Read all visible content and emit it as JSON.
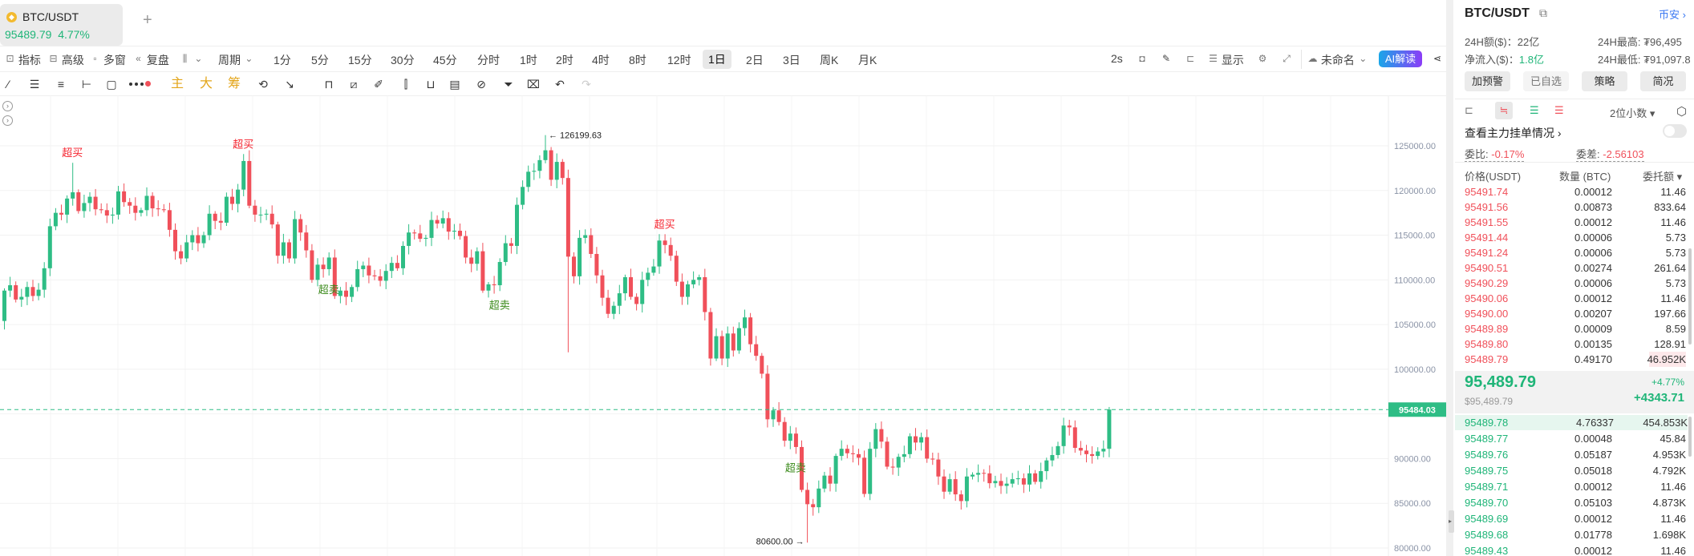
{
  "tab": {
    "symbol": "BTC/USDT",
    "price": "95489.79",
    "change": "4.77%",
    "add_label": "+"
  },
  "toolbar": {
    "left": [
      {
        "label": "指标",
        "icon": "indicator-icon"
      },
      {
        "label": "高级",
        "icon": "advanced-icon"
      },
      {
        "label": "多窗",
        "icon": "multi-window-icon"
      },
      {
        "label": "复盘",
        "icon": "replay-icon"
      },
      {
        "label": "",
        "icon": "candle-type-icon"
      }
    ],
    "period_label": "周期",
    "intervals": [
      "1分",
      "5分",
      "15分",
      "30分",
      "45分",
      "分时",
      "1时",
      "2时",
      "4时",
      "8时",
      "12时",
      "1日",
      "2日",
      "3日",
      "周K",
      "月K"
    ],
    "selected_interval": "1日",
    "right": {
      "refresh": "2s",
      "display": "显示",
      "layout_name": "未命名",
      "ai": "AI解读"
    }
  },
  "drawing_tools": {
    "indicators": [
      "主",
      "大",
      "筹"
    ]
  },
  "chart_data": {
    "type": "candlestick",
    "symbol": "BTC/USDT",
    "interval": "1日",
    "first_open": 105400,
    "closes": [
      108800,
      109400,
      107800,
      108100,
      109200,
      108200,
      108900,
      111300,
      116000,
      117500,
      117300,
      119100,
      119800,
      117700,
      118600,
      119300,
      117900,
      117800,
      117200,
      117300,
      119900,
      118700,
      118300,
      117500,
      117800,
      119400,
      118000,
      117900,
      117800,
      115600,
      113200,
      112400,
      114200,
      115000,
      114100,
      115000,
      117400,
      116600,
      116400,
      119300,
      118500,
      120100,
      123300,
      118300,
      117300,
      117300,
      117400,
      116200,
      112700,
      114200,
      112400,
      116800,
      115300,
      113300,
      110000,
      111700,
      111200,
      112500,
      108200,
      108800,
      108100,
      109200,
      111200,
      111600,
      110500,
      110400,
      109900,
      111000,
      111900,
      111300,
      113800,
      115300,
      115200,
      114600,
      114700,
      116700,
      116300,
      116900,
      115400,
      115500,
      114900,
      112500,
      111800,
      113200,
      108800,
      109500,
      109400,
      112000,
      114100,
      113800,
      118400,
      120400,
      122100,
      122200,
      123400,
      124500,
      121200,
      123200,
      121400,
      112600,
      110400,
      114700,
      115000,
      112900,
      110500,
      108000,
      106200,
      107100,
      108500,
      110300,
      108100,
      107300,
      110000,
      110800,
      111500,
      114400,
      113900,
      112700,
      109800,
      108100,
      109500,
      110000,
      110300,
      106400,
      101200,
      103700,
      101200,
      104000,
      102100,
      104600,
      105800,
      102800,
      101500,
      99500,
      94400,
      95400,
      94100,
      92000,
      92800,
      91300,
      86500,
      84900,
      84560,
      86650,
      88100,
      87200,
      90300,
      91100,
      90600,
      90500,
      90100,
      86050,
      91100,
      93300,
      91900,
      89100,
      89000,
      90200,
      90500,
      92500,
      91800,
      92400,
      90000,
      89900,
      88000,
      86300,
      87700,
      86000,
      85250,
      88000,
      88200,
      88400,
      88350,
      87250,
      87500,
      86950,
      87200,
      87700,
      87800,
      87100,
      88350,
      87400,
      88600,
      89800,
      90400,
      91400,
      93700,
      93500,
      91200,
      90900,
      90500,
      90300,
      90800,
      91100,
      95484.03
    ],
    "extremes": [
      {
        "index": 95,
        "kind": "high",
        "value": 126199.63,
        "label": "126199.63"
      },
      {
        "index": 141,
        "kind": "low",
        "value": 80600,
        "label": "80600.00"
      },
      {
        "index": 12,
        "kind": "high",
        "value": 123100
      },
      {
        "index": 43,
        "kind": "high",
        "value": 124500
      },
      {
        "index": 99,
        "kind": "low",
        "value": 101900
      }
    ],
    "signals": [
      {
        "index": 12,
        "text": "超买",
        "kind": "overbought"
      },
      {
        "index": 42,
        "text": "超买",
        "kind": "overbought"
      },
      {
        "index": 57,
        "text": "超卖",
        "kind": "oversold"
      },
      {
        "index": 87,
        "text": "超卖",
        "kind": "oversold"
      },
      {
        "index": 116,
        "text": "超买",
        "kind": "overbought"
      },
      {
        "index": 139,
        "text": "超卖",
        "kind": "oversold"
      }
    ],
    "y_ticks": [
      "125000.00",
      "120000.00",
      "115000.00",
      "110000.00",
      "105000.00",
      "100000.00",
      "90000.00",
      "85000.00",
      "80000.00"
    ],
    "ylim": [
      80000,
      125000
    ],
    "current_price": "95484.03",
    "grid": true,
    "colors": {
      "up": "#2ebd85",
      "down": "#f0505a",
      "overbought": "#f5222d",
      "oversold": "#3a8a1a"
    }
  },
  "panel": {
    "symbol": "BTC/USDT",
    "exchange": "币安",
    "stats": {
      "vol_label": "24H额($)：",
      "vol": "22亿",
      "inflow_label": "净流入($)：",
      "inflow": "1.8亿",
      "high_label": "24H最高:",
      "high": "₮96,495",
      "low_label": "24H最低:",
      "low": "₮91,097.8"
    },
    "buttons": [
      "加预警",
      "已自选",
      "策略",
      "简况"
    ],
    "decimals": "2位小数",
    "main_orders": "查看主力挂单情况",
    "ratio_label": "委比:",
    "ratio": "-0.17%",
    "diff_label": "委差:",
    "diff": "-2.56103",
    "headers": [
      "价格(USDT)",
      "数量 (BTC)",
      "委托额"
    ],
    "asks": [
      [
        "95491.74",
        "0.00012",
        "11.46"
      ],
      [
        "95491.56",
        "0.00873",
        "833.64"
      ],
      [
        "95491.55",
        "0.00012",
        "11.46"
      ],
      [
        "95491.44",
        "0.00006",
        "5.73"
      ],
      [
        "95491.24",
        "0.00006",
        "5.73"
      ],
      [
        "95490.51",
        "0.00274",
        "261.64"
      ],
      [
        "95490.29",
        "0.00006",
        "5.73"
      ],
      [
        "95490.06",
        "0.00012",
        "11.46"
      ],
      [
        "95490.00",
        "0.00207",
        "197.66"
      ],
      [
        "95489.89",
        "0.00009",
        "8.59"
      ],
      [
        "95489.80",
        "0.00135",
        "128.91"
      ],
      [
        "95489.79",
        "0.49170",
        "46.952K"
      ]
    ],
    "last_price": "95,489.79",
    "last_usd": "$95,489.79",
    "change_pct": "+4.77%",
    "change_abs": "+4343.71",
    "bids": [
      [
        "95489.78",
        "4.76337",
        "454.853K"
      ],
      [
        "95489.77",
        "0.00048",
        "45.84"
      ],
      [
        "95489.76",
        "0.05187",
        "4.953K"
      ],
      [
        "95489.75",
        "0.05018",
        "4.792K"
      ],
      [
        "95489.71",
        "0.00012",
        "11.46"
      ],
      [
        "95489.70",
        "0.05103",
        "4.873K"
      ],
      [
        "95489.69",
        "0.00012",
        "11.46"
      ],
      [
        "95489.68",
        "0.01778",
        "1.698K"
      ],
      [
        "95489.43",
        "0.00012",
        "11.46"
      ]
    ]
  }
}
